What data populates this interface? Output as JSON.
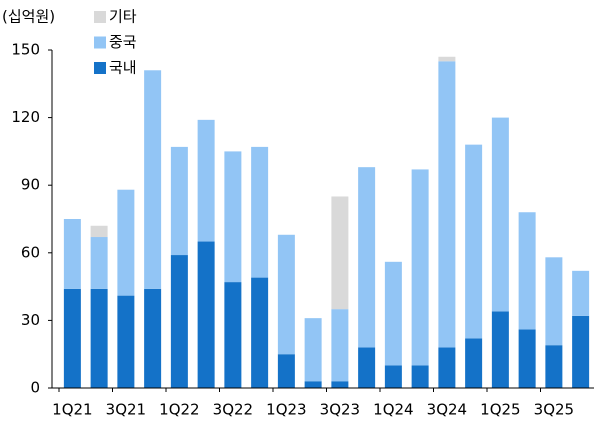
{
  "chart_data": {
    "type": "bar",
    "stacked": true,
    "y_label": "(십억원)",
    "categories": [
      "1Q21",
      null,
      "3Q21",
      null,
      "1Q22",
      null,
      "3Q22",
      null,
      "1Q23",
      null,
      "3Q23",
      null,
      "1Q24",
      null,
      "3Q24",
      null,
      "1Q25",
      null,
      "3Q25",
      null
    ],
    "series": [
      {
        "name": "기타",
        "color": "#d9d9d9",
        "values": [
          0,
          5,
          0,
          0,
          0,
          0,
          0,
          0,
          0,
          0,
          50,
          0,
          0,
          0,
          2,
          0,
          0,
          0,
          0,
          0
        ]
      },
      {
        "name": "중국",
        "color": "#92c5f5",
        "values": [
          31,
          23,
          47,
          97,
          48,
          54,
          58,
          58,
          53,
          28,
          32,
          80,
          46,
          87,
          127,
          86,
          86,
          52,
          39,
          20
        ]
      },
      {
        "name": "국내",
        "color": "#1472c8",
        "values": [
          44,
          44,
          41,
          44,
          59,
          65,
          47,
          49,
          15,
          3,
          3,
          18,
          10,
          10,
          18,
          22,
          34,
          26,
          19,
          32
        ]
      }
    ],
    "ylim": [
      0,
      150
    ],
    "yticks": [
      0,
      30,
      60,
      90,
      120,
      150
    ],
    "legend": "top-left"
  }
}
